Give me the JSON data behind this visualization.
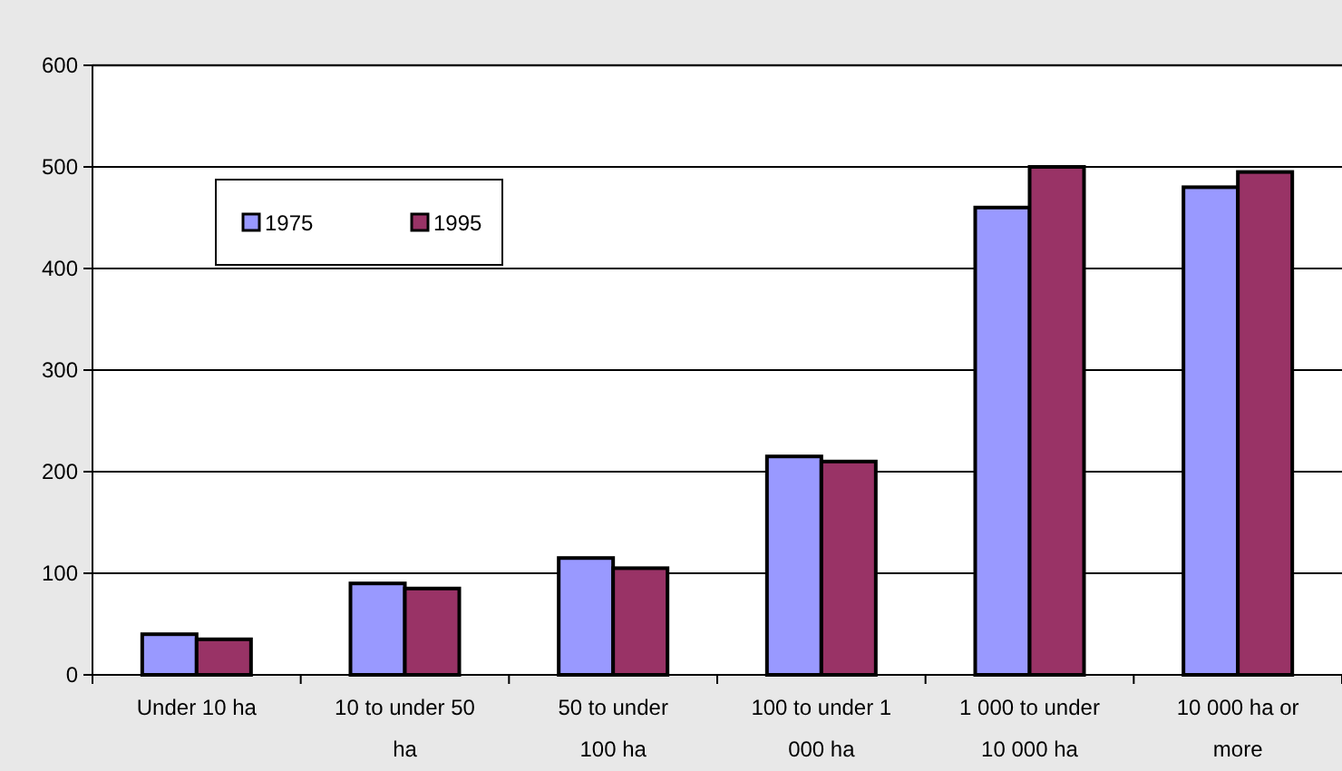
{
  "chart_data": {
    "type": "bar",
    "categories": [
      "Under 10 ha",
      "10 to under 50 ha",
      "50 to under 100 ha",
      "100 to under 1 000 ha",
      "1 000 to under 10 000 ha",
      "10 000 ha or more"
    ],
    "series": [
      {
        "name": "1975",
        "color": "#9999ff",
        "values": [
          40,
          90,
          115,
          215,
          460,
          480
        ]
      },
      {
        "name": "1995",
        "color": "#993366",
        "values": [
          35,
          85,
          105,
          210,
          500,
          495
        ]
      }
    ],
    "ylim": [
      0,
      600
    ],
    "yticks": [
      0,
      100,
      200,
      300,
      400,
      500,
      600
    ],
    "grid": "y",
    "legend": "top left"
  }
}
